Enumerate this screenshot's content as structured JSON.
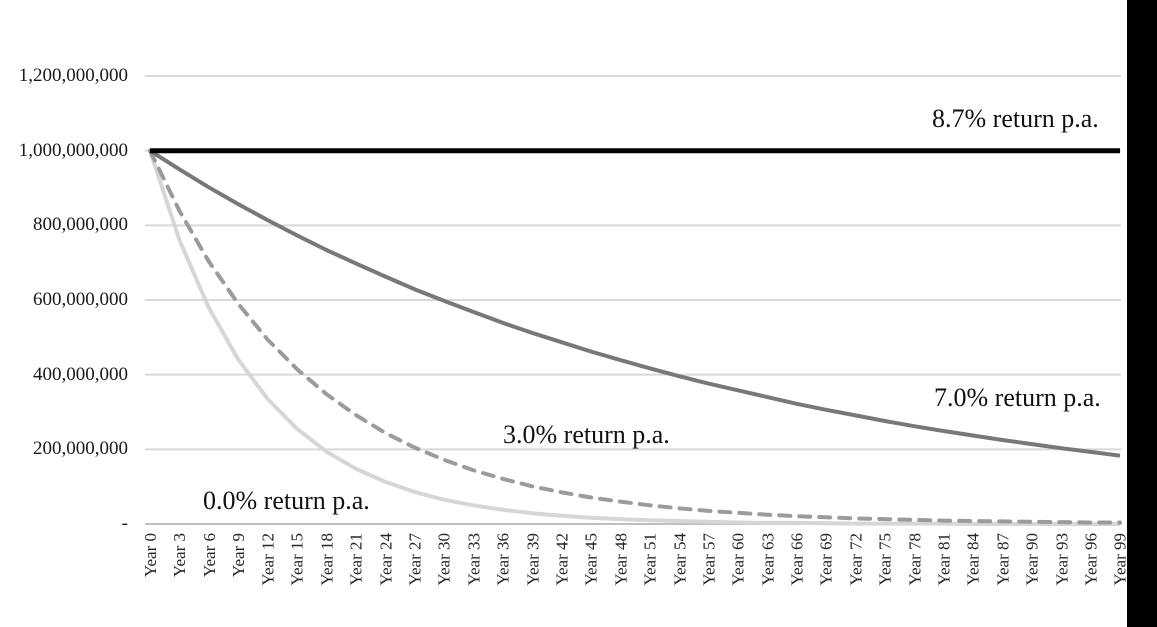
{
  "colors": {
    "background": "#ffffff",
    "gridline": "#d9d9d9",
    "axis_line": "#bfbfbf",
    "text": "#1a1a1a",
    "screen_edge_strip": "#000000"
  },
  "chart_data": {
    "type": "line",
    "title": "",
    "xlabel": "",
    "ylabel": "",
    "legend": "direct-line-labels",
    "grid": "horizontal",
    "x_axis": {
      "unit": "years",
      "step_between_labels": 3,
      "categories": [
        "Year 0",
        "Year 3",
        "Year 6",
        "Year 9",
        "Year 12",
        "Year 15",
        "Year 18",
        "Year 21",
        "Year 24",
        "Year 27",
        "Year 30",
        "Year 33",
        "Year 36",
        "Year 39",
        "Year 42",
        "Year 45",
        "Year 48",
        "Year 51",
        "Year 54",
        "Year 57",
        "Year 60",
        "Year 63",
        "Year 66",
        "Year 69",
        "Year 72",
        "Year 75",
        "Year 78",
        "Year 81",
        "Year 84",
        "Year 87",
        "Year 90",
        "Year 93",
        "Year 96",
        "Year 99"
      ]
    },
    "y_axis": {
      "min": 0,
      "max": 1200000000,
      "tick_interval": 200000000,
      "tick_labels": [
        "1,200,000,000",
        "1,000,000,000",
        "800,000,000",
        "600,000,000",
        "400,000,000",
        "200,000,000",
        "-"
      ]
    },
    "series": [
      {
        "name": "8.7% return p.a.",
        "color": "#000000",
        "line_style": "solid",
        "line_width": 5,
        "values_millions": [
          1000,
          1000,
          1000,
          1000,
          1000,
          1000,
          1000,
          1000,
          1000,
          1000,
          1000,
          1000,
          1000,
          1000,
          1000,
          1000,
          1000,
          1000,
          1000,
          1000,
          1000,
          1000,
          1000,
          1000,
          1000,
          1000,
          1000,
          1000,
          1000,
          1000,
          1000,
          1000,
          1000,
          1000
        ]
      },
      {
        "name": "7.0% return p.a.",
        "color": "#787878",
        "line_style": "solid",
        "line_width": 4,
        "values_millions": [
          1000,
          950,
          902,
          857,
          814,
          773,
          734,
          698,
          663,
          629,
          598,
          568,
          539,
          512,
          487,
          462,
          439,
          417,
          396,
          376,
          358,
          340,
          322,
          306,
          291,
          276,
          262,
          249,
          237,
          225,
          214,
          203,
          193,
          183
        ]
      },
      {
        "name": "3.0% return p.a.",
        "color": "#9b9b9b",
        "line_style": "dashed",
        "line_width": 4,
        "values_millions": [
          1000,
          839,
          703,
          590,
          494,
          415,
          348,
          292,
          244,
          205,
          172,
          144,
          121,
          101,
          85,
          71,
          60,
          50,
          42,
          35,
          30,
          25,
          21,
          18,
          15,
          13,
          11,
          9,
          8,
          7,
          6,
          5,
          4,
          4
        ]
      },
      {
        "name": "0.0% return p.a.",
        "color": "#d6d6d6",
        "line_style": "solid",
        "line_width": 4,
        "values_millions": [
          1000,
          761,
          579,
          441,
          335,
          255,
          194,
          148,
          113,
          86,
          65,
          50,
          38,
          29,
          22,
          17,
          13,
          10,
          8,
          6,
          4,
          3,
          3,
          2,
          1,
          1,
          1,
          1,
          0,
          0,
          0,
          0,
          0,
          0
        ]
      }
    ]
  }
}
